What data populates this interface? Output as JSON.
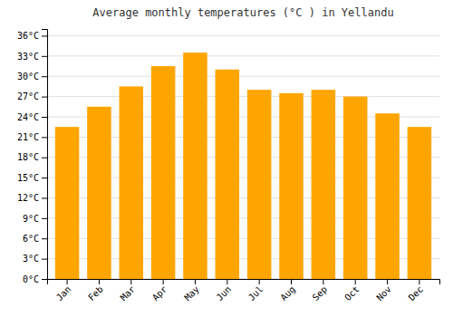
{
  "chart_data": {
    "type": "bar",
    "title": "Average monthly temperatures (°C ) in Yellandu",
    "categories": [
      "Jan",
      "Feb",
      "Mar",
      "Apr",
      "May",
      "Jun",
      "Jul",
      "Aug",
      "Sep",
      "Oct",
      "Nov",
      "Dec"
    ],
    "values": [
      22.5,
      25.5,
      28.5,
      31.5,
      33.5,
      31.0,
      28.0,
      27.5,
      28.0,
      27.0,
      24.5,
      22.5
    ],
    "color": "#FFA500",
    "ylim": [
      0,
      37
    ],
    "yticks": [
      {
        "value": 0,
        "label": "0°C"
      },
      {
        "value": 3,
        "label": "3°C"
      },
      {
        "value": 6,
        "label": "6°C"
      },
      {
        "value": 9,
        "label": "9°C"
      },
      {
        "value": 12,
        "label": "12°C"
      },
      {
        "value": 15,
        "label": "15°C"
      },
      {
        "value": 18,
        "label": "18°C"
      },
      {
        "value": 21,
        "label": "21°C"
      },
      {
        "value": 24,
        "label": "24°C"
      },
      {
        "value": 27,
        "label": "27°C"
      },
      {
        "value": 30,
        "label": "30°C"
      },
      {
        "value": 33,
        "label": "33°C"
      },
      {
        "value": 36,
        "label": "36°C"
      }
    ],
    "grid": true
  }
}
